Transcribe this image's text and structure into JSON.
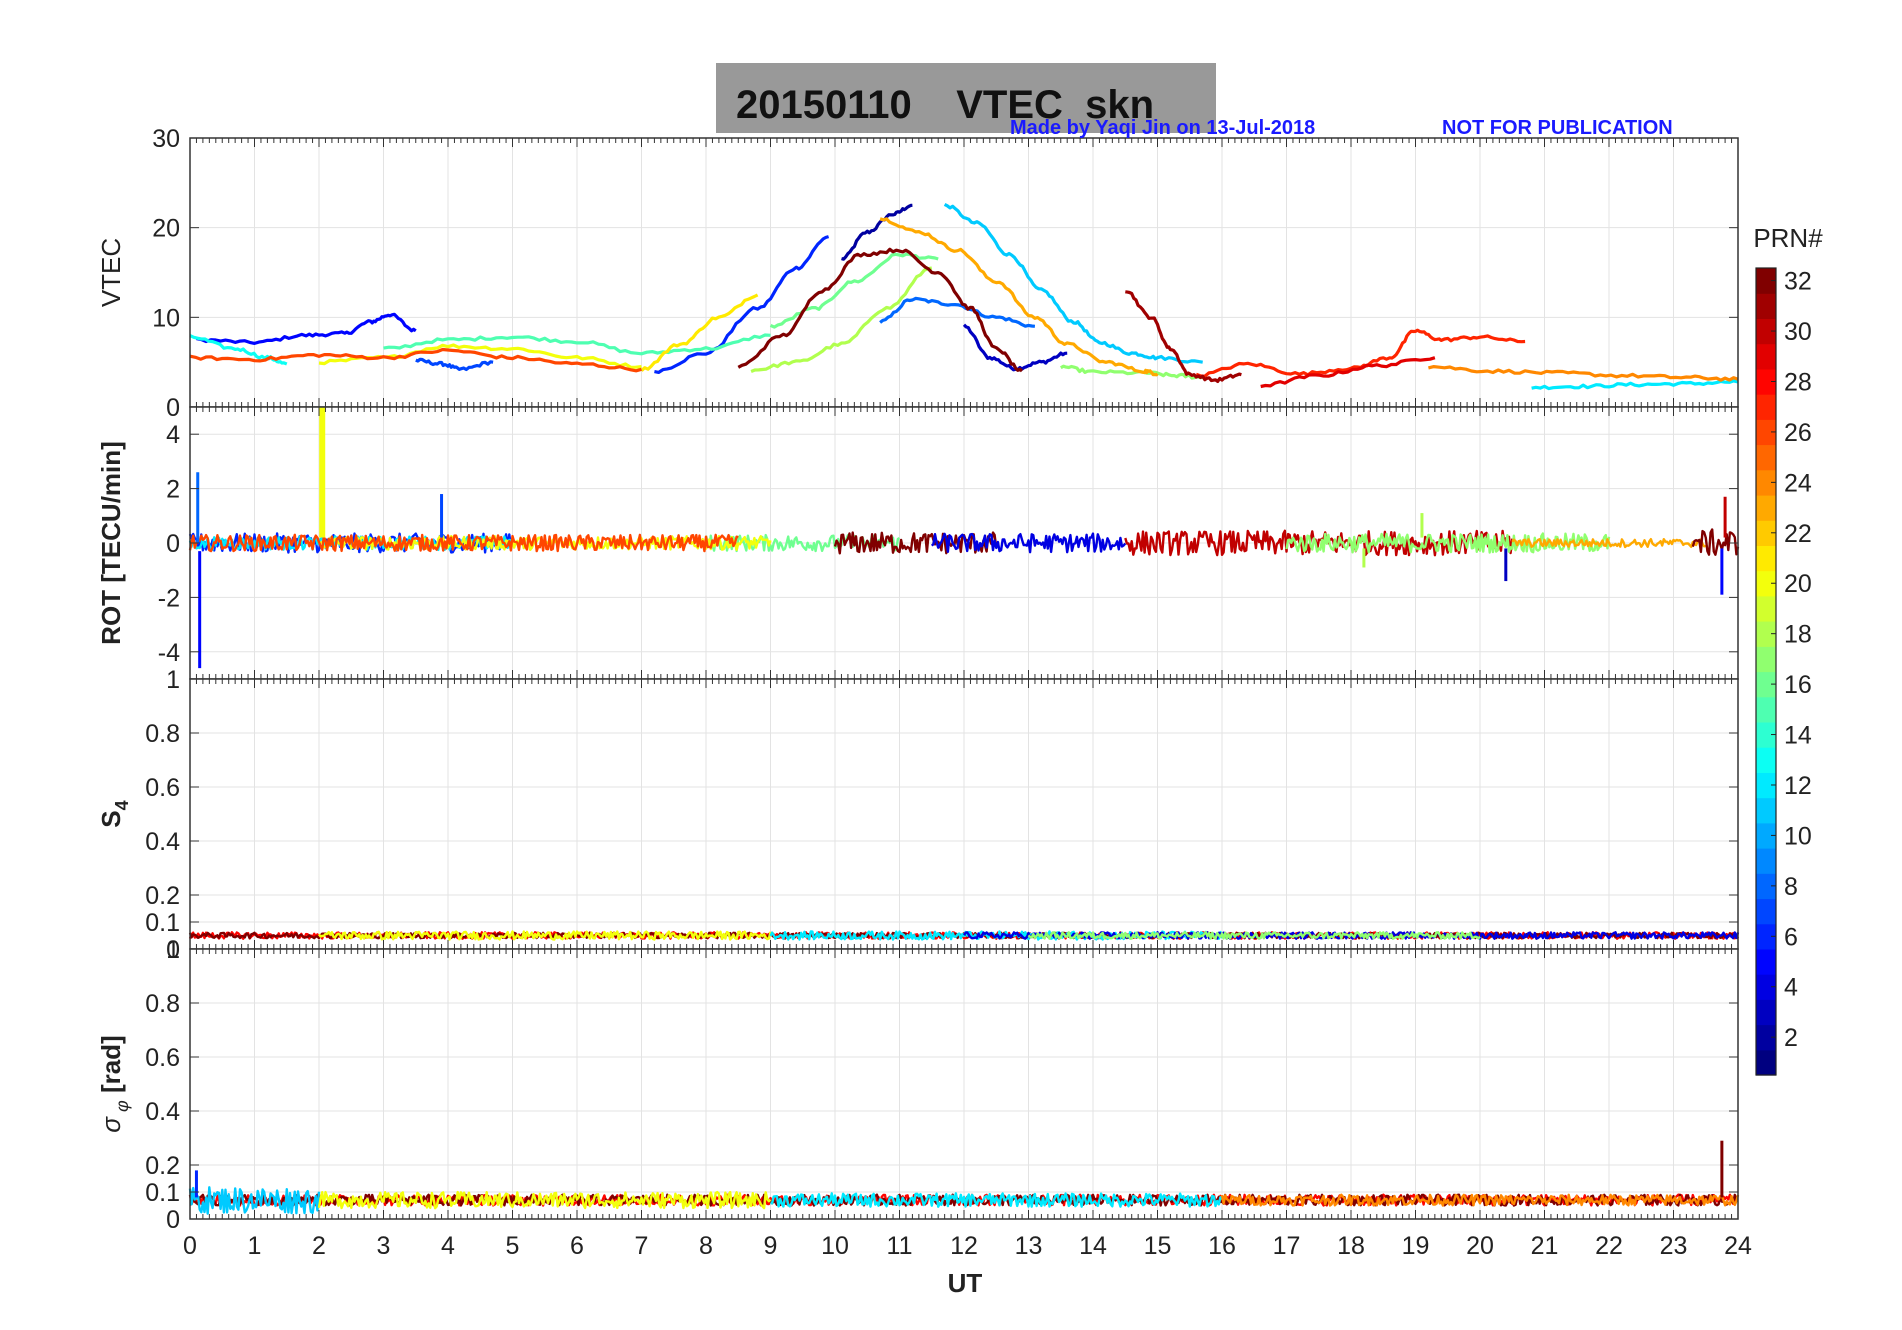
{
  "title": {
    "main": "20150110    VTEC  skn",
    "credit": "Made by Yaqi Jin on 13-Jul-2018",
    "notice": "NOT FOR PUBLICATION"
  },
  "colors": {
    "title_box": "#999999",
    "credit_text": "#1a1aff",
    "grid": "#e3e3e3",
    "axis": "#333333"
  },
  "chart_data": [
    {
      "type": "line",
      "panel": "vtec",
      "ylabel": "VTEC",
      "ylim": [
        0,
        30
      ],
      "yticks": [
        0,
        10,
        20,
        30
      ],
      "xlim": [
        0,
        24
      ],
      "grid": true,
      "series": [
        {
          "prn": 2,
          "x": [
            10.1,
            10.5,
            10.9,
            11.2
          ],
          "y": [
            16.5,
            19.5,
            21.5,
            22.5
          ]
        },
        {
          "prn": 3,
          "x": [
            12.0,
            12.4,
            12.8,
            13.2,
            13.6
          ],
          "y": [
            9.0,
            5.5,
            4.3,
            5.0,
            6.0
          ]
        },
        {
          "prn": 5,
          "x": [
            0.1,
            1.0,
            1.8,
            2.4,
            2.8,
            3.1,
            3.5
          ],
          "y": [
            7.5,
            7.2,
            8.0,
            8.2,
            9.5,
            10.3,
            8.5
          ]
        },
        {
          "prn": 6,
          "x": [
            7.2,
            8.0,
            8.8,
            9.4,
            9.9
          ],
          "y": [
            4.0,
            6.0,
            11.0,
            15.5,
            19.0
          ]
        },
        {
          "prn": 7,
          "x": [
            3.5,
            3.9,
            4.2,
            4.7
          ],
          "y": [
            5.2,
            4.8,
            4.2,
            5.0
          ]
        },
        {
          "prn": 8,
          "x": [
            10.7,
            11.2,
            11.8,
            12.5,
            13.1
          ],
          "y": [
            9.5,
            12.0,
            11.5,
            10.0,
            9.0
          ]
        },
        {
          "prn": 11,
          "x": [
            11.7,
            12.2,
            12.7,
            13.2,
            13.7,
            14.1,
            14.6,
            15.0,
            15.7
          ],
          "y": [
            22.5,
            20.5,
            17.0,
            13.0,
            9.5,
            7.2,
            6.0,
            5.5,
            5.0
          ]
        },
        {
          "prn": 12,
          "x": [
            20.8,
            21.6,
            22.4,
            23.2,
            24.0
          ],
          "y": [
            2.2,
            2.3,
            2.5,
            2.6,
            2.8
          ]
        },
        {
          "prn": 13,
          "x": [
            0.0,
            0.7,
            1.2,
            1.5
          ],
          "y": [
            7.8,
            6.5,
            5.5,
            4.8
          ]
        },
        {
          "prn": 15,
          "x": [
            3.0,
            4.0,
            5.0,
            6.0,
            7.0,
            8.0,
            9.0
          ],
          "y": [
            6.5,
            7.5,
            7.8,
            7.3,
            6.0,
            6.5,
            8.0
          ]
        },
        {
          "prn": 16,
          "x": [
            9.0,
            9.7,
            10.3,
            11.0,
            11.6
          ],
          "y": [
            9.0,
            11.0,
            14.0,
            17.0,
            16.5
          ]
        },
        {
          "prn": 17,
          "x": [
            13.5,
            14.0,
            14.8,
            15.3,
            15.7
          ],
          "y": [
            4.5,
            3.9,
            3.8,
            3.5,
            3.3
          ]
        },
        {
          "prn": 18,
          "x": [
            8.7,
            9.4,
            10.1,
            10.8,
            11.5
          ],
          "y": [
            4.1,
            5.0,
            7.0,
            11.0,
            15.5
          ]
        },
        {
          "prn": 20,
          "x": [
            2.0,
            3.0,
            4.0,
            5.0,
            6.0,
            7.0
          ],
          "y": [
            5.0,
            5.5,
            6.8,
            6.5,
            5.5,
            4.5
          ]
        },
        {
          "prn": 21,
          "x": [
            7.0,
            7.6,
            8.2,
            8.8
          ],
          "y": [
            4.2,
            7.0,
            10.0,
            12.5
          ]
        },
        {
          "prn": 23,
          "x": [
            10.7,
            11.3,
            11.9,
            12.5,
            13.1,
            13.6,
            14.2,
            14.8,
            15.0
          ],
          "y": [
            21.0,
            19.5,
            17.5,
            14.0,
            10.0,
            7.0,
            5.0,
            4.0,
            3.7
          ]
        },
        {
          "prn": 24,
          "x": [
            19.2,
            20.2,
            21.2,
            22.2,
            23.2,
            24.0
          ],
          "y": [
            4.5,
            4.0,
            3.8,
            3.5,
            3.3,
            3.1
          ]
        },
        {
          "prn": 26,
          "x": [
            0.0,
            1.0,
            2.0,
            3.0,
            4.0,
            5.0,
            6.0,
            7.0
          ],
          "y": [
            5.5,
            5.3,
            5.8,
            5.5,
            6.3,
            5.5,
            4.8,
            4.2
          ]
        },
        {
          "prn": 27,
          "x": [
            15.6,
            16.4,
            17.2,
            18.0,
            18.6,
            19.0,
            19.4,
            20.0,
            20.7
          ],
          "y": [
            3.5,
            4.8,
            3.7,
            4.3,
            5.5,
            8.5,
            7.5,
            7.8,
            7.3
          ]
        },
        {
          "prn": 29,
          "x": [
            16.6,
            17.5,
            18.4,
            19.3
          ],
          "y": [
            2.4,
            3.5,
            4.6,
            5.5
          ]
        },
        {
          "prn": 31,
          "x": [
            14.5,
            14.9,
            15.2,
            15.5,
            15.9,
            16.3
          ],
          "y": [
            13.0,
            10.0,
            6.5,
            3.6,
            3.0,
            3.6
          ]
        },
        {
          "prn": 32,
          "x": [
            8.5,
            9.2,
            9.8,
            10.4,
            11.0,
            11.6,
            12.1,
            12.5,
            12.9
          ],
          "y": [
            4.5,
            8.0,
            13.0,
            17.0,
            17.5,
            15.0,
            11.0,
            6.5,
            4.0
          ]
        }
      ]
    },
    {
      "type": "line",
      "panel": "rot",
      "ylabel": "ROT [TECU/min]",
      "ylim": [
        -5,
        5
      ],
      "yticks": [
        -4,
        -2,
        0,
        2,
        4
      ],
      "xlim": [
        0,
        24
      ],
      "grid": true,
      "bands": [
        {
          "prn": 6,
          "x0": 0.0,
          "x1": 5.0,
          "amp": 0.35
        },
        {
          "prn": 12,
          "x0": 0.0,
          "x1": 5.0,
          "amp": 0.25
        },
        {
          "prn": 16,
          "x0": 8.0,
          "x1": 11.0,
          "amp": 0.3
        },
        {
          "prn": 20,
          "x0": 2.0,
          "x1": 9.0,
          "amp": 0.25
        },
        {
          "prn": 26,
          "x0": 0.0,
          "x1": 8.5,
          "amp": 0.3
        },
        {
          "prn": 32,
          "x0": 10.0,
          "x1": 12.5,
          "amp": 0.4
        },
        {
          "prn": 4,
          "x0": 11.5,
          "x1": 14.5,
          "amp": 0.35
        },
        {
          "prn": 30,
          "x0": 14.5,
          "x1": 20.5,
          "amp": 0.45
        },
        {
          "prn": 17,
          "x0": 17.0,
          "x1": 22.0,
          "amp": 0.35
        },
        {
          "prn": 23,
          "x0": 20.5,
          "x1": 23.5,
          "amp": 0.15
        },
        {
          "prn": 32,
          "x0": 23.3,
          "x1": 24.0,
          "amp": 0.5
        }
      ],
      "spikes": [
        {
          "prn": 20,
          "x": 2.05,
          "y0": 0.2,
          "y1": 5.0
        },
        {
          "prn": 5,
          "x": 0.15,
          "y0": -0.3,
          "y1": -4.6
        },
        {
          "prn": 8,
          "x": 0.12,
          "y0": 0.0,
          "y1": 2.6
        },
        {
          "prn": 7,
          "x": 3.9,
          "y0": 0.2,
          "y1": 1.8
        },
        {
          "prn": 3,
          "x": 20.4,
          "y0": -0.2,
          "y1": -1.4
        },
        {
          "prn": 30,
          "x": 23.8,
          "y0": 0.2,
          "y1": 1.7
        },
        {
          "prn": 5,
          "x": 23.75,
          "y0": -0.2,
          "y1": -1.9
        },
        {
          "prn": 18,
          "x": 19.1,
          "y0": 0.2,
          "y1": 1.1
        },
        {
          "prn": 18,
          "x": 18.2,
          "y0": -0.2,
          "y1": -0.9
        }
      ]
    },
    {
      "type": "line",
      "panel": "s4",
      "ylabel": "S4",
      "ylim": [
        0,
        1
      ],
      "yticks": [
        0,
        0.1,
        0.2,
        0.4,
        0.6,
        0.8,
        1
      ],
      "xlim": [
        0,
        24
      ],
      "grid": true,
      "baseline": 0.05,
      "bands": [
        {
          "prn": 28,
          "x0": 0.0,
          "x1": 24.0,
          "amp": 0.012
        },
        {
          "prn": 32,
          "x0": 0.0,
          "x1": 24.0,
          "amp": 0.01
        },
        {
          "prn": 20,
          "x0": 2.0,
          "x1": 9.0,
          "amp": 0.015
        },
        {
          "prn": 12,
          "x0": 9.0,
          "x1": 16.0,
          "amp": 0.015
        },
        {
          "prn": 4,
          "x0": 12.0,
          "x1": 24.0,
          "amp": 0.012
        },
        {
          "prn": 17,
          "x0": 13.0,
          "x1": 20.0,
          "amp": 0.012
        }
      ]
    },
    {
      "type": "line",
      "panel": "sigma",
      "ylabel": "σ_φ [rad]",
      "ylim": [
        0,
        1
      ],
      "yticks": [
        0,
        0.1,
        0.2,
        0.4,
        0.6,
        0.8,
        1
      ],
      "xlim": [
        0,
        24
      ],
      "grid": true,
      "baseline": 0.07,
      "bands": [
        {
          "prn": 28,
          "x0": 0.0,
          "x1": 24.0,
          "amp": 0.02
        },
        {
          "prn": 32,
          "x0": 0.0,
          "x1": 24.0,
          "amp": 0.02
        },
        {
          "prn": 11,
          "x0": 0.0,
          "x1": 2.0,
          "amp": 0.05
        },
        {
          "prn": 20,
          "x0": 2.0,
          "x1": 9.0,
          "amp": 0.03
        },
        {
          "prn": 12,
          "x0": 9.0,
          "x1": 16.0,
          "amp": 0.025
        },
        {
          "prn": 24,
          "x0": 16.0,
          "x1": 24.0,
          "amp": 0.02
        }
      ],
      "spikes": [
        {
          "prn": 32,
          "x": 23.75,
          "y0": 0.08,
          "y1": 0.29
        },
        {
          "prn": 6,
          "x": 0.1,
          "y0": 0.08,
          "y1": 0.18
        }
      ]
    }
  ],
  "xaxis": {
    "label": "UT",
    "ticks": [
      0,
      1,
      2,
      3,
      4,
      5,
      6,
      7,
      8,
      9,
      10,
      11,
      12,
      13,
      14,
      15,
      16,
      17,
      18,
      19,
      20,
      21,
      22,
      23,
      24
    ]
  },
  "colorbar": {
    "label": "PRN#",
    "range": [
      1,
      32
    ],
    "ticks": [
      2,
      4,
      6,
      8,
      10,
      12,
      14,
      16,
      18,
      20,
      22,
      24,
      26,
      28,
      30,
      32
    ],
    "colormap": "jet"
  }
}
